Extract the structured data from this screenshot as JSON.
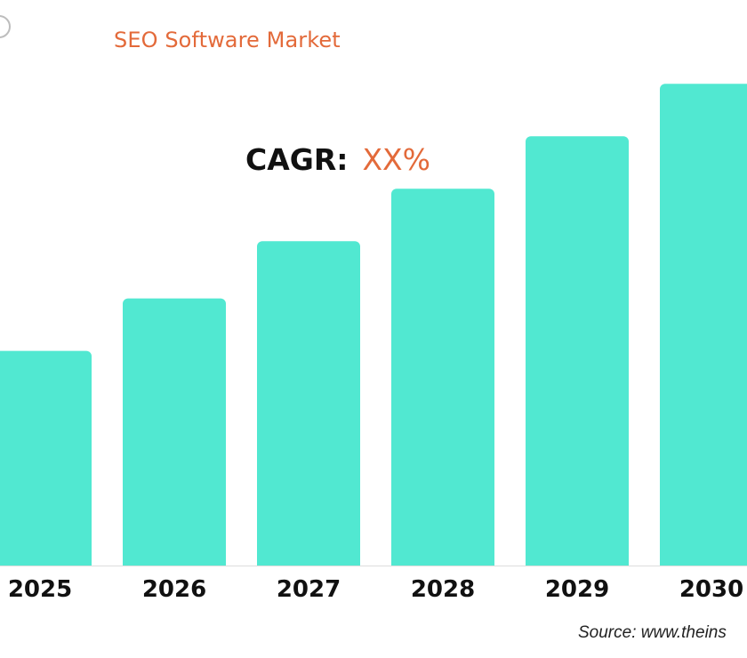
{
  "header": {
    "title": "SEO Software Market",
    "cagr_label": "CAGR:",
    "cagr_value": "XX%"
  },
  "source_text": "Source: www.theins",
  "chart_data": {
    "type": "bar",
    "title": "SEO Software Market",
    "categories": [
      "2025",
      "2026",
      "2027",
      "2028",
      "2029",
      "2030"
    ],
    "values": [
      45,
      56,
      68,
      79,
      90,
      101
    ],
    "xlabel": "",
    "ylabel": "",
    "ylim": [
      0,
      110
    ],
    "grid": false,
    "legend": "none",
    "annotation": "CAGR: XX%"
  },
  "colors": {
    "bar": "#51e8d1",
    "axis": "#dddddd",
    "accent": "#e36a3a",
    "text": "#111111"
  },
  "icons": {
    "logo": "circle-logo-icon"
  }
}
